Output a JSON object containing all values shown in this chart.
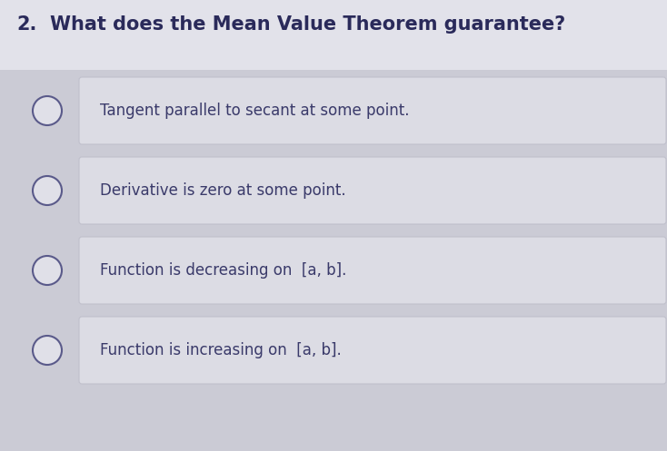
{
  "question_number": "2.",
  "question_text": "What does the Mean Value Theorem guarantee?",
  "options": [
    "Tangent parallel to secant at some point.",
    "Derivative is zero at some point.",
    "Function is decreasing on  [a, b].",
    "Function is increasing on  [a, b]."
  ],
  "top_bg_color": "#e8e8ed",
  "bottom_bg_color": "#d0d0d8",
  "box_color": "#dcdce4",
  "box_edge_color": "#c0c0cc",
  "title_color": "#2a2a5a",
  "option_text_color": "#3a3a6a",
  "circle_edge_color": "#5a5a8a",
  "circle_face_color": "#e0e0e8",
  "question_fontsize": 15,
  "option_fontsize": 12,
  "number_fontsize": 15,
  "fig_width": 7.34,
  "fig_height": 4.97,
  "dpi": 100
}
